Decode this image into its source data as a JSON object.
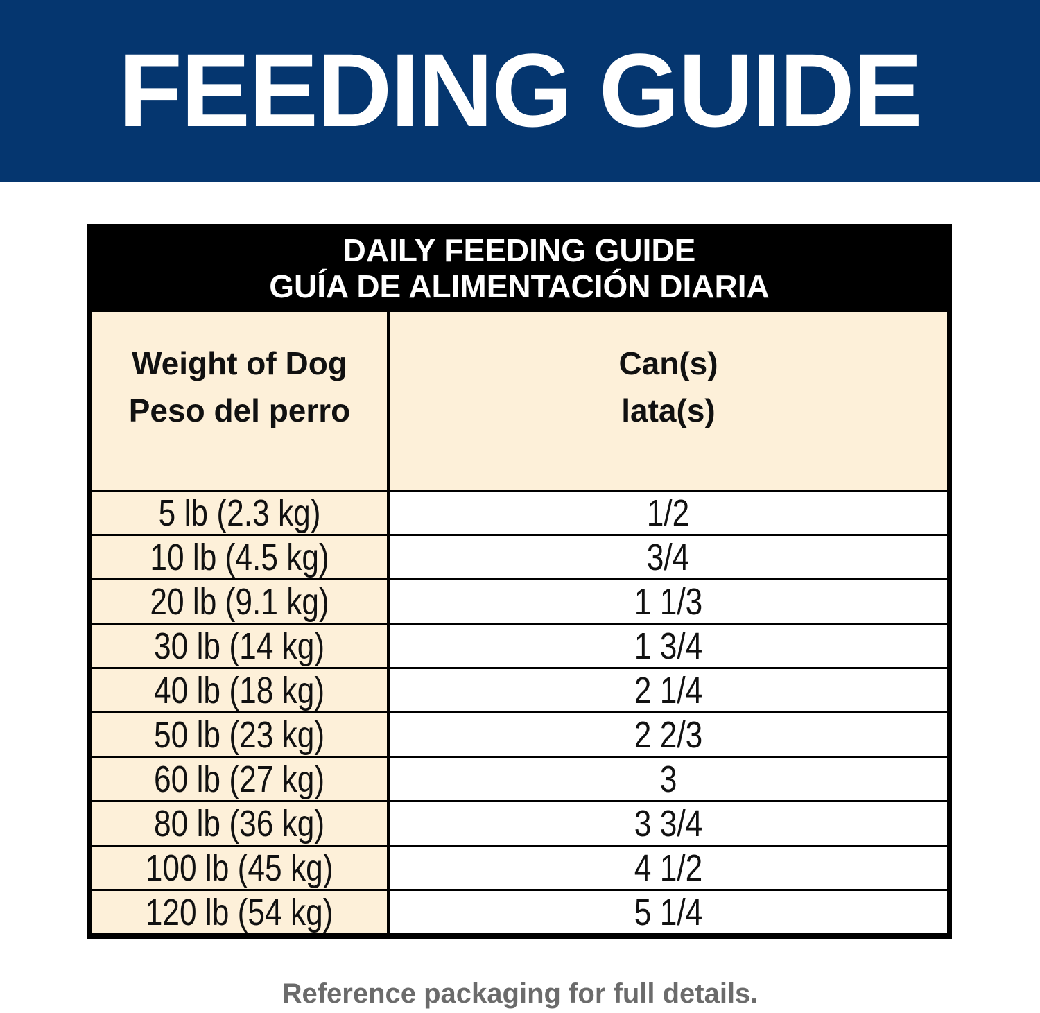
{
  "header": {
    "title": "FEEDING GUIDE"
  },
  "table": {
    "title": [
      "DAILY FEEDING GUIDE",
      "GUÍA DE ALIMENTACIÓN DIARIA"
    ],
    "columns": [
      [
        "Weight of Dog",
        "Peso del perro"
      ],
      [
        "Can(s)",
        "lata(s)"
      ]
    ],
    "rows": [
      [
        "5 lb (2.3 kg)",
        "1/2"
      ],
      [
        "10 lb (4.5 kg)",
        "3/4"
      ],
      [
        "20 lb (9.1 kg)",
        "1 1/3"
      ],
      [
        "30 lb (14 kg)",
        "1 3/4"
      ],
      [
        "40 lb (18 kg)",
        "2 1/4"
      ],
      [
        "50 lb (23 kg)",
        "2 2/3"
      ],
      [
        "60 lb (27 kg)",
        "3"
      ],
      [
        "80 lb (36 kg)",
        "3 3/4"
      ],
      [
        "100 lb (45 kg)",
        "4 1/2"
      ],
      [
        "120 lb (54 kg)",
        "5 1/4"
      ]
    ]
  },
  "footer": {
    "note": "Reference packaging for full details."
  }
}
